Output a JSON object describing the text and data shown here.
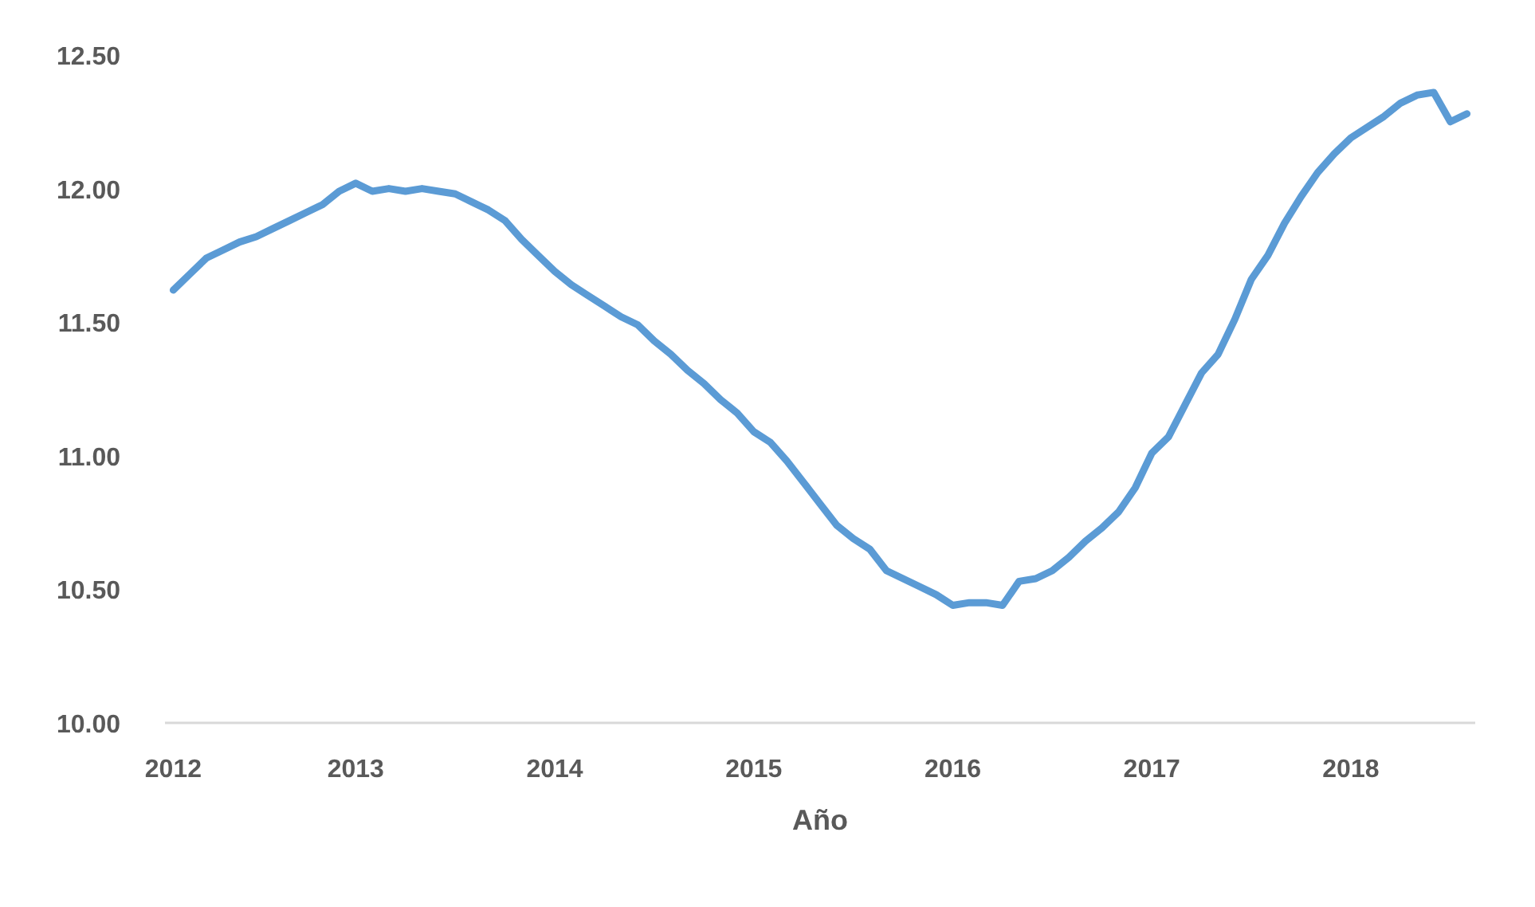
{
  "chart_data": {
    "type": "line",
    "xlabel": "Año",
    "categories": [
      "2012",
      null,
      null,
      null,
      null,
      null,
      null,
      null,
      null,
      null,
      null,
      "2013",
      null,
      null,
      null,
      null,
      null,
      null,
      null,
      null,
      null,
      null,
      null,
      "2014",
      null,
      null,
      null,
      null,
      null,
      null,
      null,
      null,
      null,
      null,
      null,
      "2015",
      null,
      null,
      null,
      null,
      null,
      null,
      null,
      null,
      null,
      null,
      null,
      "2016",
      null,
      null,
      null,
      null,
      null,
      null,
      null,
      null,
      null,
      null,
      null,
      "2017",
      null,
      null,
      null,
      null,
      null,
      null,
      null,
      null,
      null,
      null,
      null,
      "2018",
      null,
      null,
      null,
      null,
      null,
      null,
      null
    ],
    "series": [
      {
        "color": "#5b9bd5",
        "values": [
          11.62,
          11.68,
          11.74,
          11.77,
          11.8,
          11.82,
          11.85,
          11.88,
          11.91,
          11.94,
          11.99,
          12.02,
          11.99,
          12.0,
          11.99,
          12.0,
          11.99,
          11.98,
          11.95,
          11.92,
          11.88,
          11.81,
          11.75,
          11.69,
          11.64,
          11.6,
          11.56,
          11.52,
          11.49,
          11.43,
          11.38,
          11.32,
          11.27,
          11.21,
          11.16,
          11.09,
          11.05,
          10.98,
          10.9,
          10.82,
          10.74,
          10.69,
          10.65,
          10.57,
          10.54,
          10.51,
          10.48,
          10.44,
          10.45,
          10.45,
          10.44,
          10.53,
          10.54,
          10.57,
          10.62,
          10.68,
          10.73,
          10.79,
          10.88,
          11.01,
          11.07,
          11.19,
          11.31,
          11.38,
          11.51,
          11.66,
          11.75,
          11.87,
          11.97,
          12.06,
          12.13,
          12.19,
          12.23,
          12.27,
          12.32,
          12.35,
          12.36,
          12.25,
          12.28
        ]
      }
    ],
    "ylim": [
      10,
      12.5
    ],
    "yticks": [
      {
        "value": 10,
        "label": "10.00"
      },
      {
        "value": 10.5,
        "label": "10.50"
      },
      {
        "value": 11,
        "label": "11.00"
      },
      {
        "value": 11.5,
        "label": "11.50"
      },
      {
        "value": 12,
        "label": "12.00"
      },
      {
        "value": 12.5,
        "label": "12.50"
      }
    ],
    "line_style": "solid"
  }
}
